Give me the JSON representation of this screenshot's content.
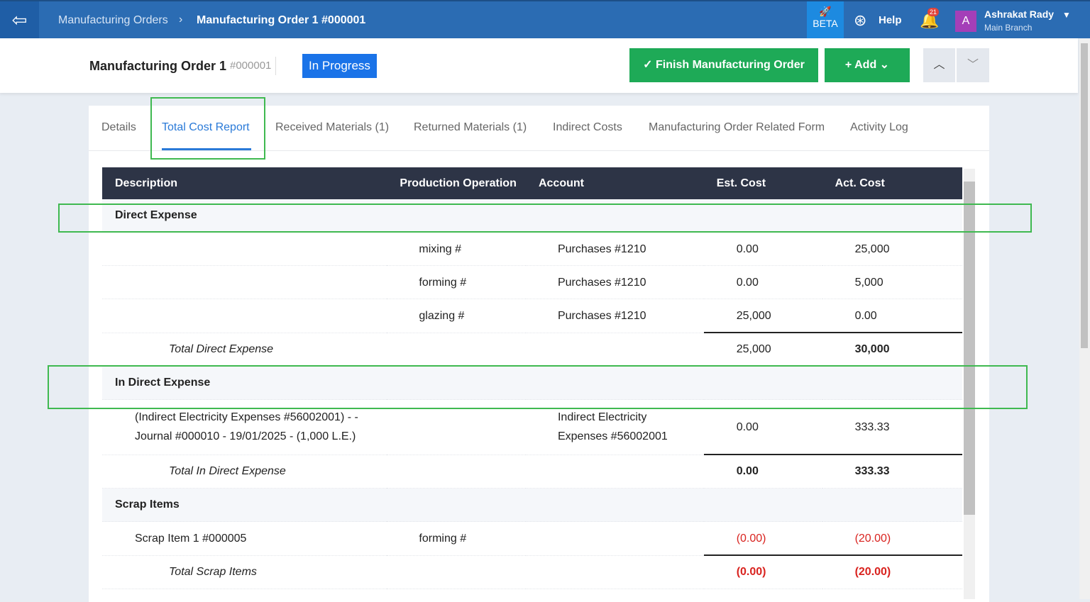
{
  "topbar": {
    "breadcrumb": [
      "Manufacturing Orders",
      "Manufacturing Order 1 #000001"
    ],
    "beta": "BETA",
    "help": "Help",
    "notification_count": "21",
    "user": {
      "initial": "A",
      "name": "Ashrakat Rady",
      "branch": "Main Branch"
    }
  },
  "header": {
    "title": "Manufacturing Order 1",
    "number": "#000001",
    "status": "In Progress",
    "actions": [
      "Finish Manufacturing Order",
      "Add"
    ]
  },
  "tabs": [
    {
      "label": "Details"
    },
    {
      "label": "Total Cost Report",
      "active": true
    },
    {
      "label": "Received Materials (1)"
    },
    {
      "label": "Returned Materials (1)"
    },
    {
      "label": "Indirect Costs"
    },
    {
      "label": "Manufacturing Order Related Form"
    },
    {
      "label": "Activity Log"
    }
  ],
  "table": {
    "columns": [
      "Description",
      "Production Operation",
      "Account",
      "Est. Cost",
      "Act. Cost"
    ],
    "sections": [
      {
        "title": "Direct Expense",
        "rows": [
          [
            null,
            "mixing #",
            "Purchases #1210",
            "0.00",
            "25,000"
          ],
          [
            null,
            "forming #",
            "Purchases #1210",
            "0.00",
            "5,000"
          ],
          [
            null,
            "glazing #",
            "Purchases #1210",
            "25,000",
            "0.00"
          ]
        ],
        "total": {
          "label": "Total Direct Expense",
          "est": "25,000",
          "act": "30,000"
        }
      },
      {
        "title": "In Direct Expense",
        "rows": [
          [
            "(Indirect Electricity Expenses #56002001) - - Journal #000010 - 19/01/2025 - (1,000 L.E.)",
            null,
            "Indirect Electricity Expenses #56002001",
            "0.00",
            "333.33"
          ]
        ],
        "total": {
          "label": "Total In Direct Expense",
          "est": "0.00",
          "act": "333.33"
        }
      },
      {
        "title": "Scrap Items",
        "rows": [
          [
            "Scrap Item 1 #000005",
            "forming #",
            null,
            "(0.00)",
            "(20.00)"
          ]
        ],
        "total": {
          "label": "Total Scrap Items",
          "est": "(0.00)",
          "act": "(20.00)"
        }
      }
    ]
  }
}
